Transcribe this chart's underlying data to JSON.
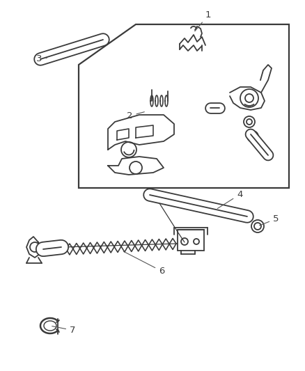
{
  "bg_color": "#ffffff",
  "line_color": "#3a3a3a",
  "label_color": "#3a3a3a",
  "lw": 1.3,
  "figsize": [
    4.39,
    5.33
  ],
  "dpi": 100
}
